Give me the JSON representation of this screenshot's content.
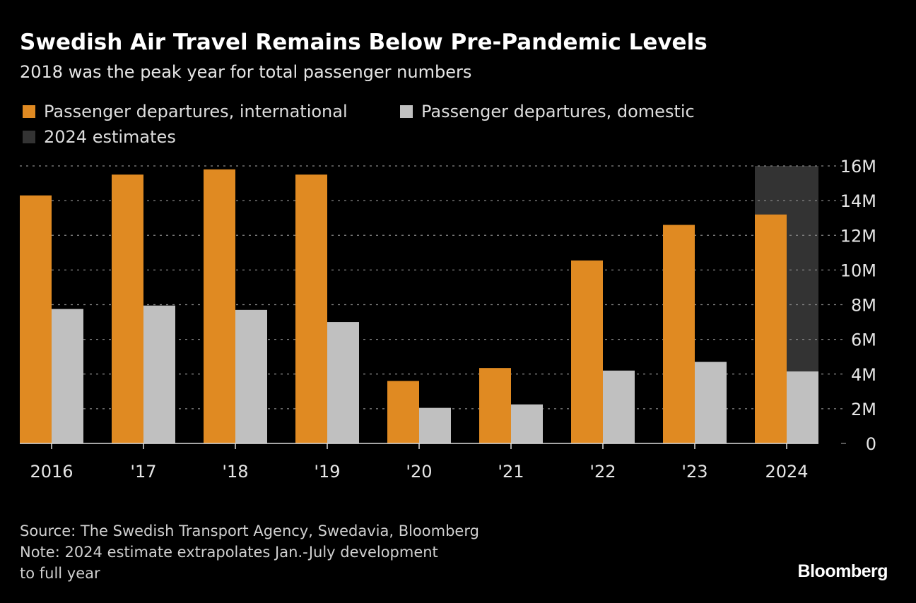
{
  "chart_data": {
    "type": "bar",
    "title": "Swedish Air Travel Remains Below Pre-Pandemic Levels",
    "subtitle": "2018 was the peak year for total passenger numbers",
    "categories": [
      "2016",
      "'17",
      "'18",
      "'19",
      "'20",
      "'21",
      "'22",
      "'23",
      "2024"
    ],
    "series": [
      {
        "name": "Passenger departures, international",
        "color": "#e08a22",
        "values": [
          14.3,
          15.5,
          15.8,
          15.5,
          3.6,
          4.35,
          10.55,
          12.6,
          13.2
        ]
      },
      {
        "name": "Passenger departures, domestic",
        "color": "#c0c0c0",
        "values": [
          7.75,
          7.95,
          7.7,
          7.0,
          2.05,
          2.25,
          4.2,
          4.7,
          4.15
        ]
      }
    ],
    "estimate_legend": "2024 estimates",
    "estimate_color": "#333333",
    "estimate_category": "2024",
    "ylim": [
      0,
      16
    ],
    "yticks": [
      0,
      2,
      4,
      6,
      8,
      10,
      12,
      14,
      16
    ],
    "ytick_labels": [
      "0",
      "2M",
      "4M",
      "6M",
      "8M",
      "10M",
      "12M",
      "14M",
      "16M"
    ],
    "xlabel": "",
    "ylabel": "",
    "grid": true,
    "legend_position": "top-left"
  },
  "footer": {
    "source": "Source: The Swedish Transport Agency, Swedavia, Bloomberg",
    "note_line1": "Note: 2024 estimate extrapolates Jan.-July development",
    "note_line2": "to full year",
    "logo": "Bloomberg"
  }
}
